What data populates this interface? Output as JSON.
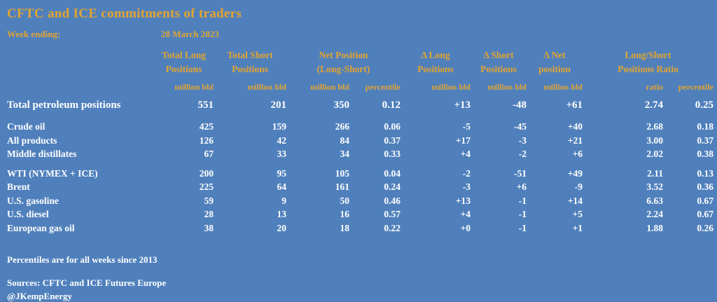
{
  "page": {
    "title": "CFTC and ICE commitments of traders",
    "week_ending_label": "Week ending:",
    "week_ending_value": "28 March 2023",
    "footnote": "Percentiles are for all weeks since 2013",
    "sources_line": "Sources: CFTC and ICE Futures Europe",
    "author_handle": "@JKempEnergy"
  },
  "colors": {
    "background": "#5080BC",
    "accent_gold": "#E2A431",
    "text": "#FFFFFF"
  },
  "chart_data": {
    "type": "table",
    "title": "CFTC and ICE commitments of traders",
    "week_ending": "28 March 2023",
    "column_groups": [
      {
        "label": "Total Long Positions",
        "wrap": "Total Long\nPositions",
        "colspan": 1
      },
      {
        "label": "Total Short Positions",
        "wrap": "Total Short\nPositions",
        "colspan": 1
      },
      {
        "label": "Net Position (Long-Short)",
        "wrap": "Net Position\n(Long-Short)",
        "colspan": 2
      },
      {
        "label": "Δ Long Positions",
        "wrap": "Δ Long\nPositions",
        "colspan": 1
      },
      {
        "label": "Δ Short Positions",
        "wrap": "Δ Short\nPositions",
        "colspan": 1
      },
      {
        "label": "Δ Net position",
        "wrap": "Δ Net\nposition",
        "colspan": 1
      },
      {
        "label": "Long/Short Positions Ratio",
        "wrap": "Long/Short\nPositions Ratio",
        "colspan": 2
      }
    ],
    "unit_row": [
      "million bbl",
      "million bbl",
      "million bbl",
      "percentile",
      "million bbl",
      "million bbl",
      "million bbl",
      "ratio",
      "percentile"
    ],
    "rows": [
      {
        "label": "Total petroleum positions",
        "emphasis": true,
        "group_start": false,
        "values": [
          "551",
          "201",
          "350",
          "0.12",
          "+13",
          "-48",
          "+61",
          "2.74",
          "0.25"
        ]
      },
      {
        "label": "Crude oil",
        "emphasis": false,
        "group_start": false,
        "values": [
          "425",
          "159",
          "266",
          "0.06",
          "-5",
          "-45",
          "+40",
          "2.68",
          "0.18"
        ]
      },
      {
        "label": "All products",
        "emphasis": false,
        "group_start": false,
        "values": [
          "126",
          "42",
          "84",
          "0.37",
          "+17",
          "-3",
          "+21",
          "3.00",
          "0.37"
        ]
      },
      {
        "label": "Middle distillates",
        "emphasis": false,
        "group_start": false,
        "values": [
          "67",
          "33",
          "34",
          "0.33",
          "+4",
          "-2",
          "+6",
          "2.02",
          "0.38"
        ]
      },
      {
        "label": "WTI (NYMEX + ICE)",
        "emphasis": false,
        "group_start": true,
        "values": [
          "200",
          "95",
          "105",
          "0.04",
          "-2",
          "-51",
          "+49",
          "2.11",
          "0.13"
        ]
      },
      {
        "label": "Brent",
        "emphasis": false,
        "group_start": false,
        "values": [
          "225",
          "64",
          "161",
          "0.24",
          "-3",
          "+6",
          "-9",
          "3.52",
          "0.36"
        ]
      },
      {
        "label": "U.S. gasoline",
        "emphasis": false,
        "group_start": false,
        "values": [
          "59",
          "9",
          "50",
          "0.46",
          "+13",
          "-1",
          "+14",
          "6.63",
          "0.67"
        ]
      },
      {
        "label": "U.S. diesel",
        "emphasis": false,
        "group_start": false,
        "values": [
          "28",
          "13",
          "16",
          "0.57",
          "+4",
          "-1",
          "+5",
          "2.24",
          "0.67"
        ]
      },
      {
        "label": "European gas oil",
        "emphasis": false,
        "group_start": false,
        "values": [
          "38",
          "20",
          "18",
          "0.22",
          "+0",
          "-1",
          "+1",
          "1.88",
          "0.26"
        ]
      }
    ]
  }
}
